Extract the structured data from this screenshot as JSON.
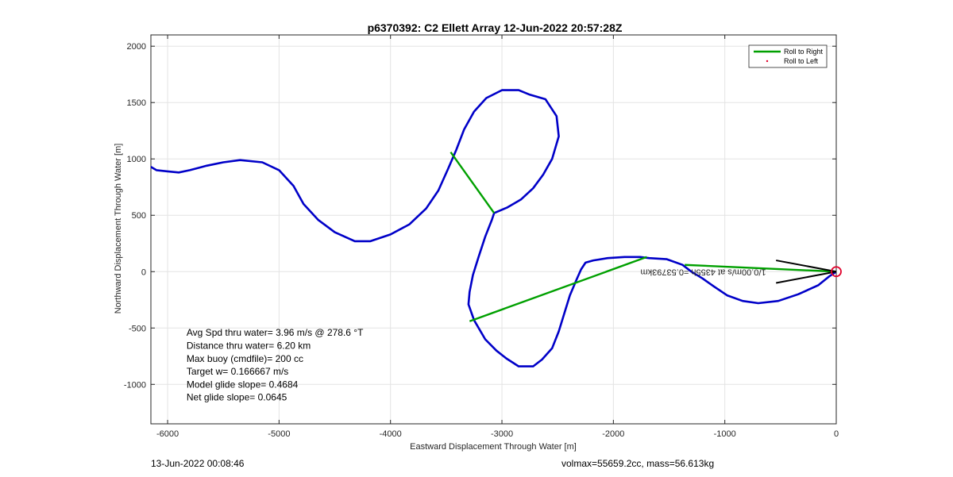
{
  "chart_data": {
    "type": "line",
    "title": "p6370392: C2 Ellett Array 12-Jun-2022 20:57:28Z",
    "xlabel": "Eastward Displacement Through Water [m]",
    "ylabel": "Northward Displacement Through Water [m]",
    "xlim": [
      -6150,
      0
    ],
    "ylim": [
      -1350,
      2100
    ],
    "xticks": [
      -6000,
      -5000,
      -4000,
      -3000,
      -2000,
      -1000,
      0
    ],
    "yticks": [
      -1000,
      -500,
      0,
      500,
      1000,
      1500,
      2000
    ],
    "grid": true,
    "legend": {
      "placement": "top-right",
      "entries": [
        {
          "label": "Roll to Right",
          "color": "#00a000",
          "style": "line"
        },
        {
          "label": "Roll to Left",
          "color": "#e0002a",
          "style": "marker"
        }
      ]
    },
    "track": {
      "color": "#0000c8",
      "x": [
        -6150,
        -6100,
        -6000,
        -5900,
        -5800,
        -5650,
        -5500,
        -5350,
        -5150,
        -5000,
        -4870,
        -4780,
        -4650,
        -4500,
        -4320,
        -4180,
        -4000,
        -3830,
        -3680,
        -3570,
        -3480,
        -3410,
        -3340,
        -3250,
        -3140,
        -3000,
        -2850,
        -2750,
        -2610,
        -2510,
        -2490,
        -2550,
        -2630,
        -2720,
        -2830,
        -2950,
        -3070,
        -3090,
        -3150,
        -3210,
        -3260,
        -3290,
        -3300,
        -3250,
        -3150,
        -3050,
        -2960,
        -2850,
        -2720,
        -2640,
        -2550,
        -2490,
        -2440,
        -2390,
        -2330,
        -2290,
        -2250,
        -2180,
        -2050,
        -1900,
        -1760,
        -1680,
        -1520,
        -1380,
        -1300,
        -1200,
        -1100,
        -980,
        -840,
        -700,
        -520,
        -340,
        -160,
        -60,
        0
      ],
      "y": [
        930,
        900,
        890,
        880,
        900,
        940,
        970,
        990,
        970,
        900,
        760,
        600,
        460,
        350,
        270,
        270,
        330,
        420,
        560,
        720,
        920,
        1080,
        1260,
        1420,
        1540,
        1610,
        1610,
        1570,
        1530,
        1380,
        1200,
        1000,
        860,
        740,
        640,
        570,
        520,
        460,
        310,
        130,
        -30,
        -180,
        -290,
        -430,
        -600,
        -700,
        -770,
        -840,
        -840,
        -780,
        -680,
        -530,
        -370,
        -210,
        -70,
        20,
        80,
        100,
        120,
        130,
        130,
        120,
        110,
        60,
        0,
        -60,
        -130,
        -210,
        -260,
        -280,
        -260,
        -200,
        -120,
        -40,
        0
      ]
    },
    "rolls_right": [
      {
        "x": [
          -3460,
          -3070
        ],
        "y": [
          1060,
          520
        ]
      },
      {
        "x": [
          -3290,
          -1700
        ],
        "y": [
          -440,
          130
        ]
      },
      {
        "x": [
          -1360,
          0
        ],
        "y": [
          60,
          0
        ]
      }
    ],
    "current_arrow": {
      "tail": [
        0,
        0
      ],
      "head_lines": [
        {
          "x": [
            0,
            -540
          ],
          "y": [
            0,
            100
          ]
        },
        {
          "x": [
            0,
            -540
          ],
          "y": [
            0,
            -100
          ]
        }
      ],
      "label": "1/0.00m/s at 4355h =0.53793km",
      "label_anchor": [
        -630,
        0
      ]
    },
    "end_marker": {
      "x": 0,
      "y": 0,
      "color": "#e0002a"
    },
    "annotations": [
      "Avg Spd thru water=  3.96 m/s @ 278.6 °T",
      "Distance thru water=  6.20 km",
      "Max buoy (cmdfile)= 200 cc",
      "Target w= 0.166667 m/s",
      "Model glide slope= 0.4684",
      "Net glide slope= 0.0645"
    ],
    "annotations_anchor": [
      -5830,
      -570
    ]
  },
  "footer": {
    "left": "13-Jun-2022 00:08:46",
    "right": "volmax=55659.2cc, mass=56.613kg"
  }
}
